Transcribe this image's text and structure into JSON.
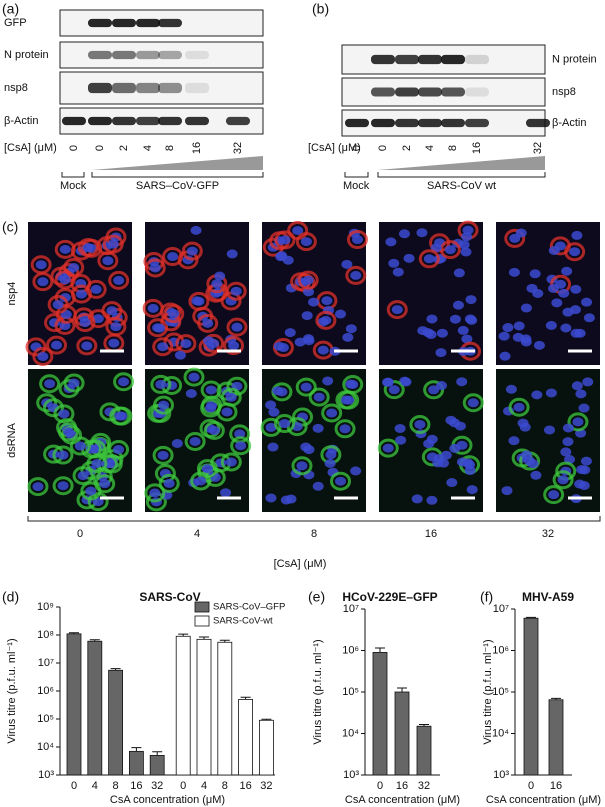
{
  "panels": {
    "a": {
      "label": "(a)",
      "rows": [
        "GFP",
        "N protein",
        "nsp8",
        "β-Actin"
      ],
      "dose_label": "[CsA] (μM)",
      "lanes": [
        "0",
        "0",
        "2",
        "4",
        "8",
        "16",
        "32"
      ],
      "mock": "Mock",
      "virus": "SARS–CoV-GFP"
    },
    "b": {
      "label": "(b)",
      "rows": [
        "N protein",
        "nsp8",
        "β-Actin"
      ],
      "dose_label": "[CsA] (μM)",
      "lanes": [
        "0",
        "0",
        "2",
        "4",
        "8",
        "16",
        "32"
      ],
      "mock": "Mock",
      "virus": "SARS-CoV wt"
    },
    "c": {
      "label": "(c)",
      "rows": [
        "nsp4",
        "dsRNA"
      ],
      "columns": [
        "0",
        "4",
        "8",
        "16",
        "32"
      ],
      "axis_label": "[CsA] (μM)"
    }
  },
  "chart_data": [
    {
      "type": "bar",
      "panel_label": "(d)",
      "title": "SARS-CoV",
      "log_scale": true,
      "x_label": "CsA concentration (μM)",
      "y_label": "Virus titre (p.f.u. ml⁻¹)",
      "categories": [
        "0",
        "4",
        "8",
        "16",
        "32"
      ],
      "series": [
        {
          "name": "SARS-CoV–GFP",
          "color": "#666666",
          "values": [
            110000000,
            60000000,
            5500000,
            7000,
            5000
          ],
          "errors": [
            10000000,
            8000000,
            800000,
            2500,
            1800
          ]
        },
        {
          "name": "SARS-CoV-wt",
          "color": "#ffffff",
          "values": [
            90000000,
            70000000,
            55000000,
            500000,
            90000
          ],
          "errors": [
            18000000,
            15000000,
            10000000,
            100000,
            8000
          ]
        }
      ],
      "ylim": [
        1000,
        1000000000
      ],
      "yticks": [
        {
          "value": 1000,
          "label": "10³"
        },
        {
          "value": 10000,
          "label": "10⁴"
        },
        {
          "value": 100000,
          "label": "10⁵"
        },
        {
          "value": 1000000,
          "label": "10⁶"
        },
        {
          "value": 10000000,
          "label": "10⁷"
        },
        {
          "value": 100000000,
          "label": "10⁸"
        },
        {
          "value": 1000000000,
          "label": "10⁹"
        }
      ],
      "legend": "top-right"
    },
    {
      "type": "bar",
      "panel_label": "(e)",
      "title": "HCoV-229E–GFP",
      "log_scale": true,
      "x_label": "CsA concentration (μM)",
      "y_label": "Virus titre (p.f.u. ml⁻¹)",
      "categories": [
        "0",
        "16",
        "32"
      ],
      "color": "#666666",
      "values": [
        900000,
        100000,
        15000
      ],
      "errors": [
        250000,
        25000,
        1500
      ],
      "ylim": [
        1000,
        10000000
      ],
      "yticks": [
        {
          "value": 1000,
          "label": "10³"
        },
        {
          "value": 10000,
          "label": "10⁴"
        },
        {
          "value": 100000,
          "label": "10⁵"
        },
        {
          "value": 1000000,
          "label": "10⁶"
        },
        {
          "value": 10000000,
          "label": "10⁷"
        }
      ]
    },
    {
      "type": "bar",
      "panel_label": "(f)",
      "title": "MHV-A59",
      "log_scale": true,
      "x_label": "CsA concentration (μM)",
      "y_label": "Virus titre (p.f.u. ml⁻¹)",
      "categories": [
        "0",
        "16"
      ],
      "color": "#666666",
      "values": [
        6000000,
        65000
      ],
      "errors": [
        300000,
        5000
      ],
      "ylim": [
        1000,
        10000000
      ],
      "yticks": [
        {
          "value": 1000,
          "label": "10³"
        },
        {
          "value": 10000,
          "label": "10⁴"
        },
        {
          "value": 100000,
          "label": "10⁵"
        },
        {
          "value": 1000000,
          "label": "10⁶"
        },
        {
          "value": 10000000,
          "label": "10⁷"
        }
      ]
    }
  ]
}
